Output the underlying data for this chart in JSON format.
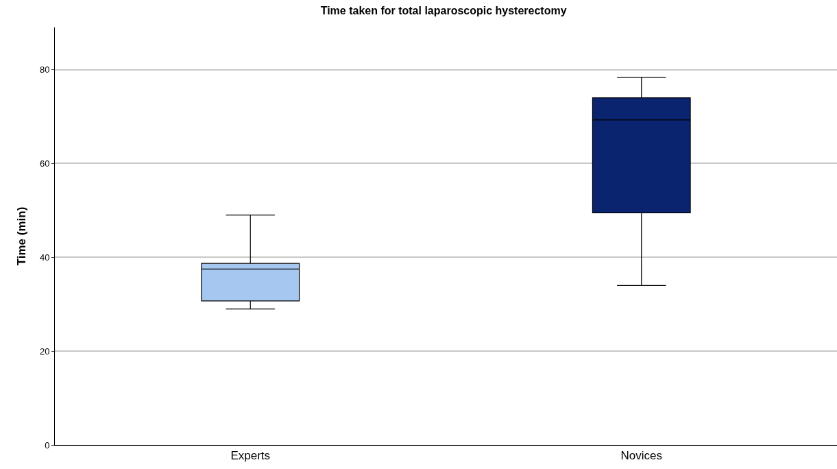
{
  "chart_data": {
    "type": "box",
    "title": "Time taken for total laparoscopic hysterectomy",
    "ylabel": "Time (min)",
    "categories": [
      "Experts",
      "Novices"
    ],
    "boxes": [
      {
        "low": 29,
        "q1": 30.7,
        "median": 37.5,
        "q3": 38.7,
        "high": 49
      },
      {
        "low": 34,
        "q1": 49.5,
        "median": 69.3,
        "q3": 74,
        "high": 78.4
      }
    ],
    "colors": [
      "#a6c8f0",
      "#0b2470"
    ],
    "ylim": [
      0,
      89
    ],
    "yticks": [
      0,
      20,
      40,
      60,
      80
    ],
    "grid": "y",
    "legend": false
  }
}
